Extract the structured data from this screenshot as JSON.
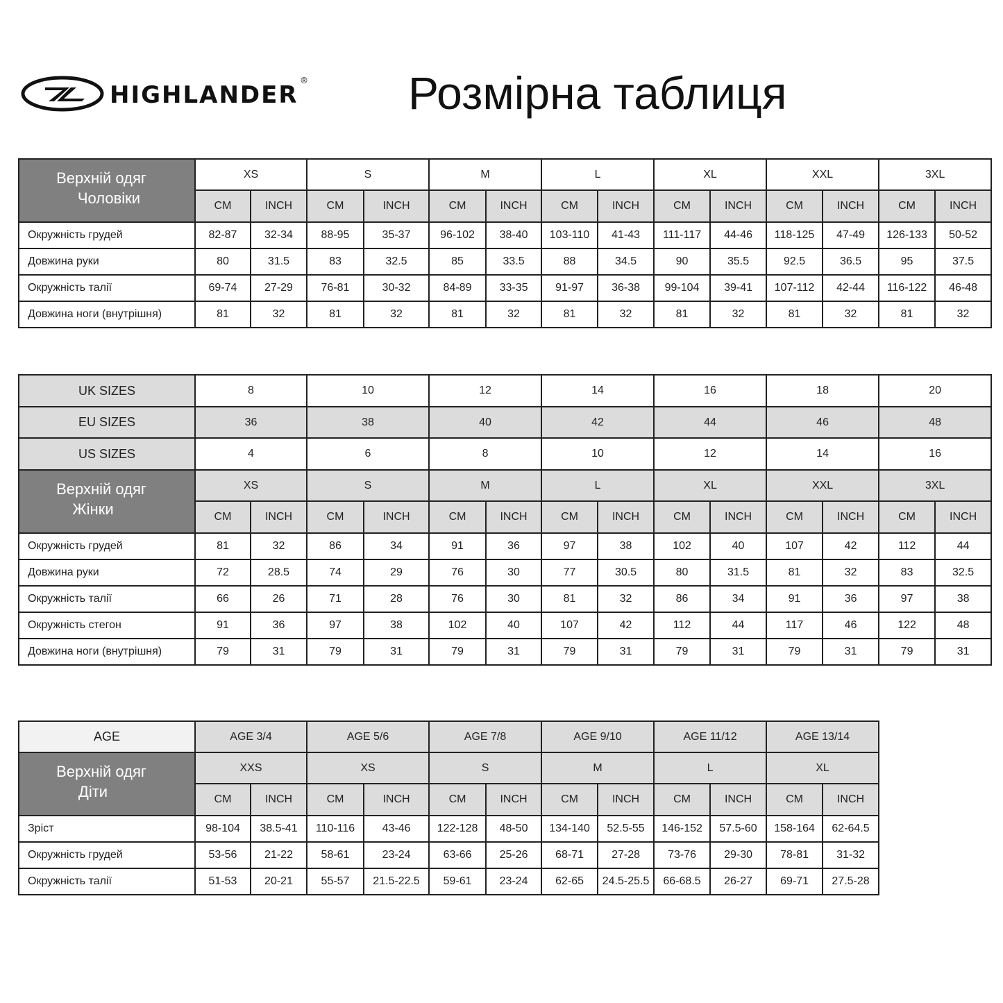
{
  "logo": {
    "brand": "HIGHLANDER",
    "mark": "®"
  },
  "title": "Розмірна таблиця",
  "colors": {
    "dark_header": "#808080",
    "light_header": "#dcdcdc",
    "border": "#222222"
  },
  "men": {
    "heading": [
      "Верхній одяг",
      "Чоловіки"
    ],
    "sizes": [
      "XS",
      "S",
      "M",
      "L",
      "XL",
      "XXL",
      "3XL"
    ],
    "units": [
      "CM",
      "INCH"
    ],
    "rows": [
      {
        "label": "Окружність грудей",
        "values": [
          "82-87",
          "32-34",
          "88-95",
          "35-37",
          "96-102",
          "38-40",
          "103-110",
          "41-43",
          "111-117",
          "44-46",
          "118-125",
          "47-49",
          "126-133",
          "50-52"
        ]
      },
      {
        "label": "Довжина руки",
        "values": [
          "80",
          "31.5",
          "83",
          "32.5",
          "85",
          "33.5",
          "88",
          "34.5",
          "90",
          "35.5",
          "92.5",
          "36.5",
          "95",
          "37.5"
        ]
      },
      {
        "label": "Окружність талії",
        "values": [
          "69-74",
          "27-29",
          "76-81",
          "30-32",
          "84-89",
          "33-35",
          "91-97",
          "36-38",
          "99-104",
          "39-41",
          "107-112",
          "42-44",
          "116-122",
          "46-48"
        ]
      },
      {
        "label": "Довжина ноги (внутрішня)",
        "values": [
          "81",
          "32",
          "81",
          "32",
          "81",
          "32",
          "81",
          "32",
          "81",
          "32",
          "81",
          "32",
          "81",
          "32"
        ]
      }
    ]
  },
  "women": {
    "conversions": [
      {
        "label": "UK SIZES",
        "values": [
          "8",
          "10",
          "12",
          "14",
          "16",
          "18",
          "20"
        ]
      },
      {
        "label": "EU SIZES",
        "values": [
          "36",
          "38",
          "40",
          "42",
          "44",
          "46",
          "48"
        ]
      },
      {
        "label": "US SIZES",
        "values": [
          "4",
          "6",
          "8",
          "10",
          "12",
          "14",
          "16"
        ]
      }
    ],
    "heading": [
      "Верхній одяг",
      "Жінки"
    ],
    "sizes": [
      "XS",
      "S",
      "M",
      "L",
      "XL",
      "XXL",
      "3XL"
    ],
    "units": [
      "CM",
      "INCH"
    ],
    "rows": [
      {
        "label": "Окружність грудей",
        "values": [
          "81",
          "32",
          "86",
          "34",
          "91",
          "36",
          "97",
          "38",
          "102",
          "40",
          "107",
          "42",
          "112",
          "44"
        ]
      },
      {
        "label": "Довжина руки",
        "values": [
          "72",
          "28.5",
          "74",
          "29",
          "76",
          "30",
          "77",
          "30.5",
          "80",
          "31.5",
          "81",
          "32",
          "83",
          "32.5"
        ]
      },
      {
        "label": "Окружність талії",
        "values": [
          "66",
          "26",
          "71",
          "28",
          "76",
          "30",
          "81",
          "32",
          "86",
          "34",
          "91",
          "36",
          "97",
          "38"
        ]
      },
      {
        "label": "Окружність стегон",
        "values": [
          "91",
          "36",
          "97",
          "38",
          "102",
          "40",
          "107",
          "42",
          "112",
          "44",
          "117",
          "46",
          "122",
          "48"
        ]
      },
      {
        "label": "Довжина ноги (внутрішня)",
        "values": [
          "79",
          "31",
          "79",
          "31",
          "79",
          "31",
          "79",
          "31",
          "79",
          "31",
          "79",
          "31",
          "79",
          "31"
        ]
      }
    ]
  },
  "kids": {
    "age_label": "AGE",
    "ages": [
      "AGE 3/4",
      "AGE 5/6",
      "AGE 7/8",
      "AGE 9/10",
      "AGE 11/12",
      "AGE 13/14"
    ],
    "heading": [
      "Верхній одяг",
      "Діти"
    ],
    "sizes": [
      "XXS",
      "XS",
      "S",
      "M",
      "L",
      "XL"
    ],
    "units": [
      "CM",
      "INCH"
    ],
    "rows": [
      {
        "label": "Зріст",
        "values": [
          "98-104",
          "38.5-41",
          "110-116",
          "43-46",
          "122-128",
          "48-50",
          "134-140",
          "52.5-55",
          "146-152",
          "57.5-60",
          "158-164",
          "62-64.5"
        ]
      },
      {
        "label": "Окружність грудей",
        "values": [
          "53-56",
          "21-22",
          "58-61",
          "23-24",
          "63-66",
          "25-26",
          "68-71",
          "27-28",
          "73-76",
          "29-30",
          "78-81",
          "31-32"
        ]
      },
      {
        "label": "Окружність талії",
        "values": [
          "51-53",
          "20-21",
          "55-57",
          "21.5-22.5",
          "59-61",
          "23-24",
          "62-65",
          "24.5-25.5",
          "66-68.5",
          "26-27",
          "69-71",
          "27.5-28"
        ]
      }
    ]
  }
}
